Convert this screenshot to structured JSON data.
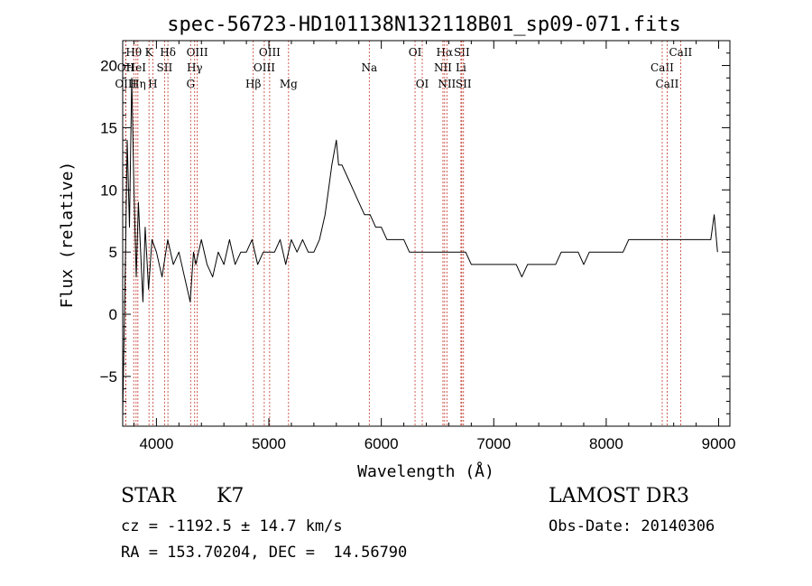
{
  "chart_data": {
    "type": "line",
    "title": "spec-56723-HD101138N132118B01_sp09-071.fits",
    "xlabel": "Wavelength (Å)",
    "ylabel": "Flux (relative)",
    "xlim": [
      3700,
      9100
    ],
    "ylim": [
      -9,
      22
    ],
    "x_ticks": [
      4000,
      5000,
      6000,
      7000,
      8000,
      9000
    ],
    "y_ticks": [
      -5,
      0,
      5,
      10,
      15,
      20
    ],
    "grid": false,
    "series": [
      {
        "name": "spectrum",
        "x": [
          3700,
          3720,
          3740,
          3760,
          3780,
          3800,
          3820,
          3840,
          3860,
          3880,
          3900,
          3930,
          3960,
          4000,
          4050,
          4100,
          4150,
          4200,
          4250,
          4300,
          4330,
          4350,
          4400,
          4450,
          4500,
          4550,
          4600,
          4650,
          4700,
          4750,
          4800,
          4850,
          4900,
          4950,
          5000,
          5050,
          5100,
          5150,
          5200,
          5250,
          5300,
          5350,
          5400,
          5450,
          5500,
          5530,
          5560,
          5580,
          5600,
          5620,
          5650,
          5700,
          5750,
          5800,
          5850,
          5900,
          5950,
          6000,
          6050,
          6100,
          6150,
          6200,
          6250,
          6300,
          6350,
          6400,
          6450,
          6500,
          6550,
          6600,
          6650,
          6700,
          6750,
          6800,
          6850,
          6900,
          6950,
          7000,
          7050,
          7100,
          7150,
          7200,
          7250,
          7300,
          7350,
          7400,
          7450,
          7500,
          7550,
          7600,
          7650,
          7700,
          7750,
          7800,
          7850,
          7900,
          7950,
          8000,
          8050,
          8100,
          8150,
          8200,
          8250,
          8300,
          8350,
          8400,
          8450,
          8500,
          8550,
          8600,
          8650,
          8700,
          8750,
          8800,
          8850,
          8900,
          8930,
          8960,
          8990
        ],
        "y": [
          -8,
          2,
          14,
          7,
          19,
          10,
          3,
          9,
          5,
          1,
          7,
          2,
          6,
          5,
          3,
          6,
          4,
          5,
          3,
          1,
          5,
          4,
          6,
          4,
          3,
          5,
          4,
          6,
          4,
          5,
          5,
          6,
          4,
          5,
          5,
          5,
          6,
          4,
          6,
          5,
          6,
          5,
          5,
          6,
          8,
          10,
          12,
          13,
          14,
          12,
          12,
          11,
          10,
          9,
          8,
          8,
          7,
          7,
          6,
          6,
          6,
          6,
          5,
          5,
          5,
          5,
          5,
          5,
          5,
          5,
          5,
          5,
          5,
          4,
          4,
          4,
          4,
          4,
          4,
          4,
          4,
          4,
          3,
          4,
          4,
          4,
          4,
          4,
          4,
          5,
          5,
          5,
          5,
          4,
          5,
          5,
          5,
          5,
          5,
          5,
          5,
          6,
          6,
          6,
          6,
          6,
          6,
          6,
          6,
          6,
          6,
          6,
          6,
          6,
          6,
          6,
          6,
          8,
          5
        ]
      }
    ],
    "line_marks": [
      {
        "label": "Hθ",
        "x": 3798,
        "row": 1
      },
      {
        "label": "OII",
        "x": 3727,
        "row": 2
      },
      {
        "label": "HeI",
        "x": 3819,
        "row": 2
      },
      {
        "label": "OIII",
        "x": 3727,
        "row": 3
      },
      {
        "label": "Hη",
        "x": 3835,
        "row": 3
      },
      {
        "label": "K",
        "x": 3934,
        "row": 1
      },
      {
        "label": "SII",
        "x": 4072,
        "row": 2
      },
      {
        "label": "H",
        "x": 3968,
        "row": 3
      },
      {
        "label": "Hδ",
        "x": 4102,
        "row": 1
      },
      {
        "label": "OIII",
        "x": 4363,
        "row": 1
      },
      {
        "label": "Hγ",
        "x": 4340,
        "row": 2
      },
      {
        "label": "G",
        "x": 4304,
        "row": 3
      },
      {
        "label": "OIII",
        "x": 5007,
        "row": 1
      },
      {
        "label": "OIII",
        "x": 4959,
        "row": 2
      },
      {
        "label": "Hβ",
        "x": 4861,
        "row": 3
      },
      {
        "label": "Mg",
        "x": 5175,
        "row": 3
      },
      {
        "label": "Na",
        "x": 5893,
        "row": 2
      },
      {
        "label": "OI",
        "x": 6300,
        "row": 1
      },
      {
        "label": "OI",
        "x": 6364,
        "row": 3
      },
      {
        "label": "Hα",
        "x": 6563,
        "row": 1
      },
      {
        "label": "NII",
        "x": 6548,
        "row": 2
      },
      {
        "label": "NII",
        "x": 6583,
        "row": 3
      },
      {
        "label": "SII",
        "x": 6716,
        "row": 1
      },
      {
        "label": "Li",
        "x": 6708,
        "row": 2
      },
      {
        "label": "SII",
        "x": 6731,
        "row": 3
      },
      {
        "label": "CaII",
        "x": 8662,
        "row": 1
      },
      {
        "label": "CaII",
        "x": 8498,
        "row": 2
      },
      {
        "label": "CaII",
        "x": 8542,
        "row": 3
      }
    ]
  },
  "info": {
    "class_label": "STAR",
    "subclass_label": "K7",
    "survey": "LAMOST DR3",
    "redshift": "cz = -1192.5 ± 14.7 km/s",
    "obs_date": "Obs-Date: 20140306",
    "coords": "RA = 153.70204, DEC =  14.56790"
  }
}
